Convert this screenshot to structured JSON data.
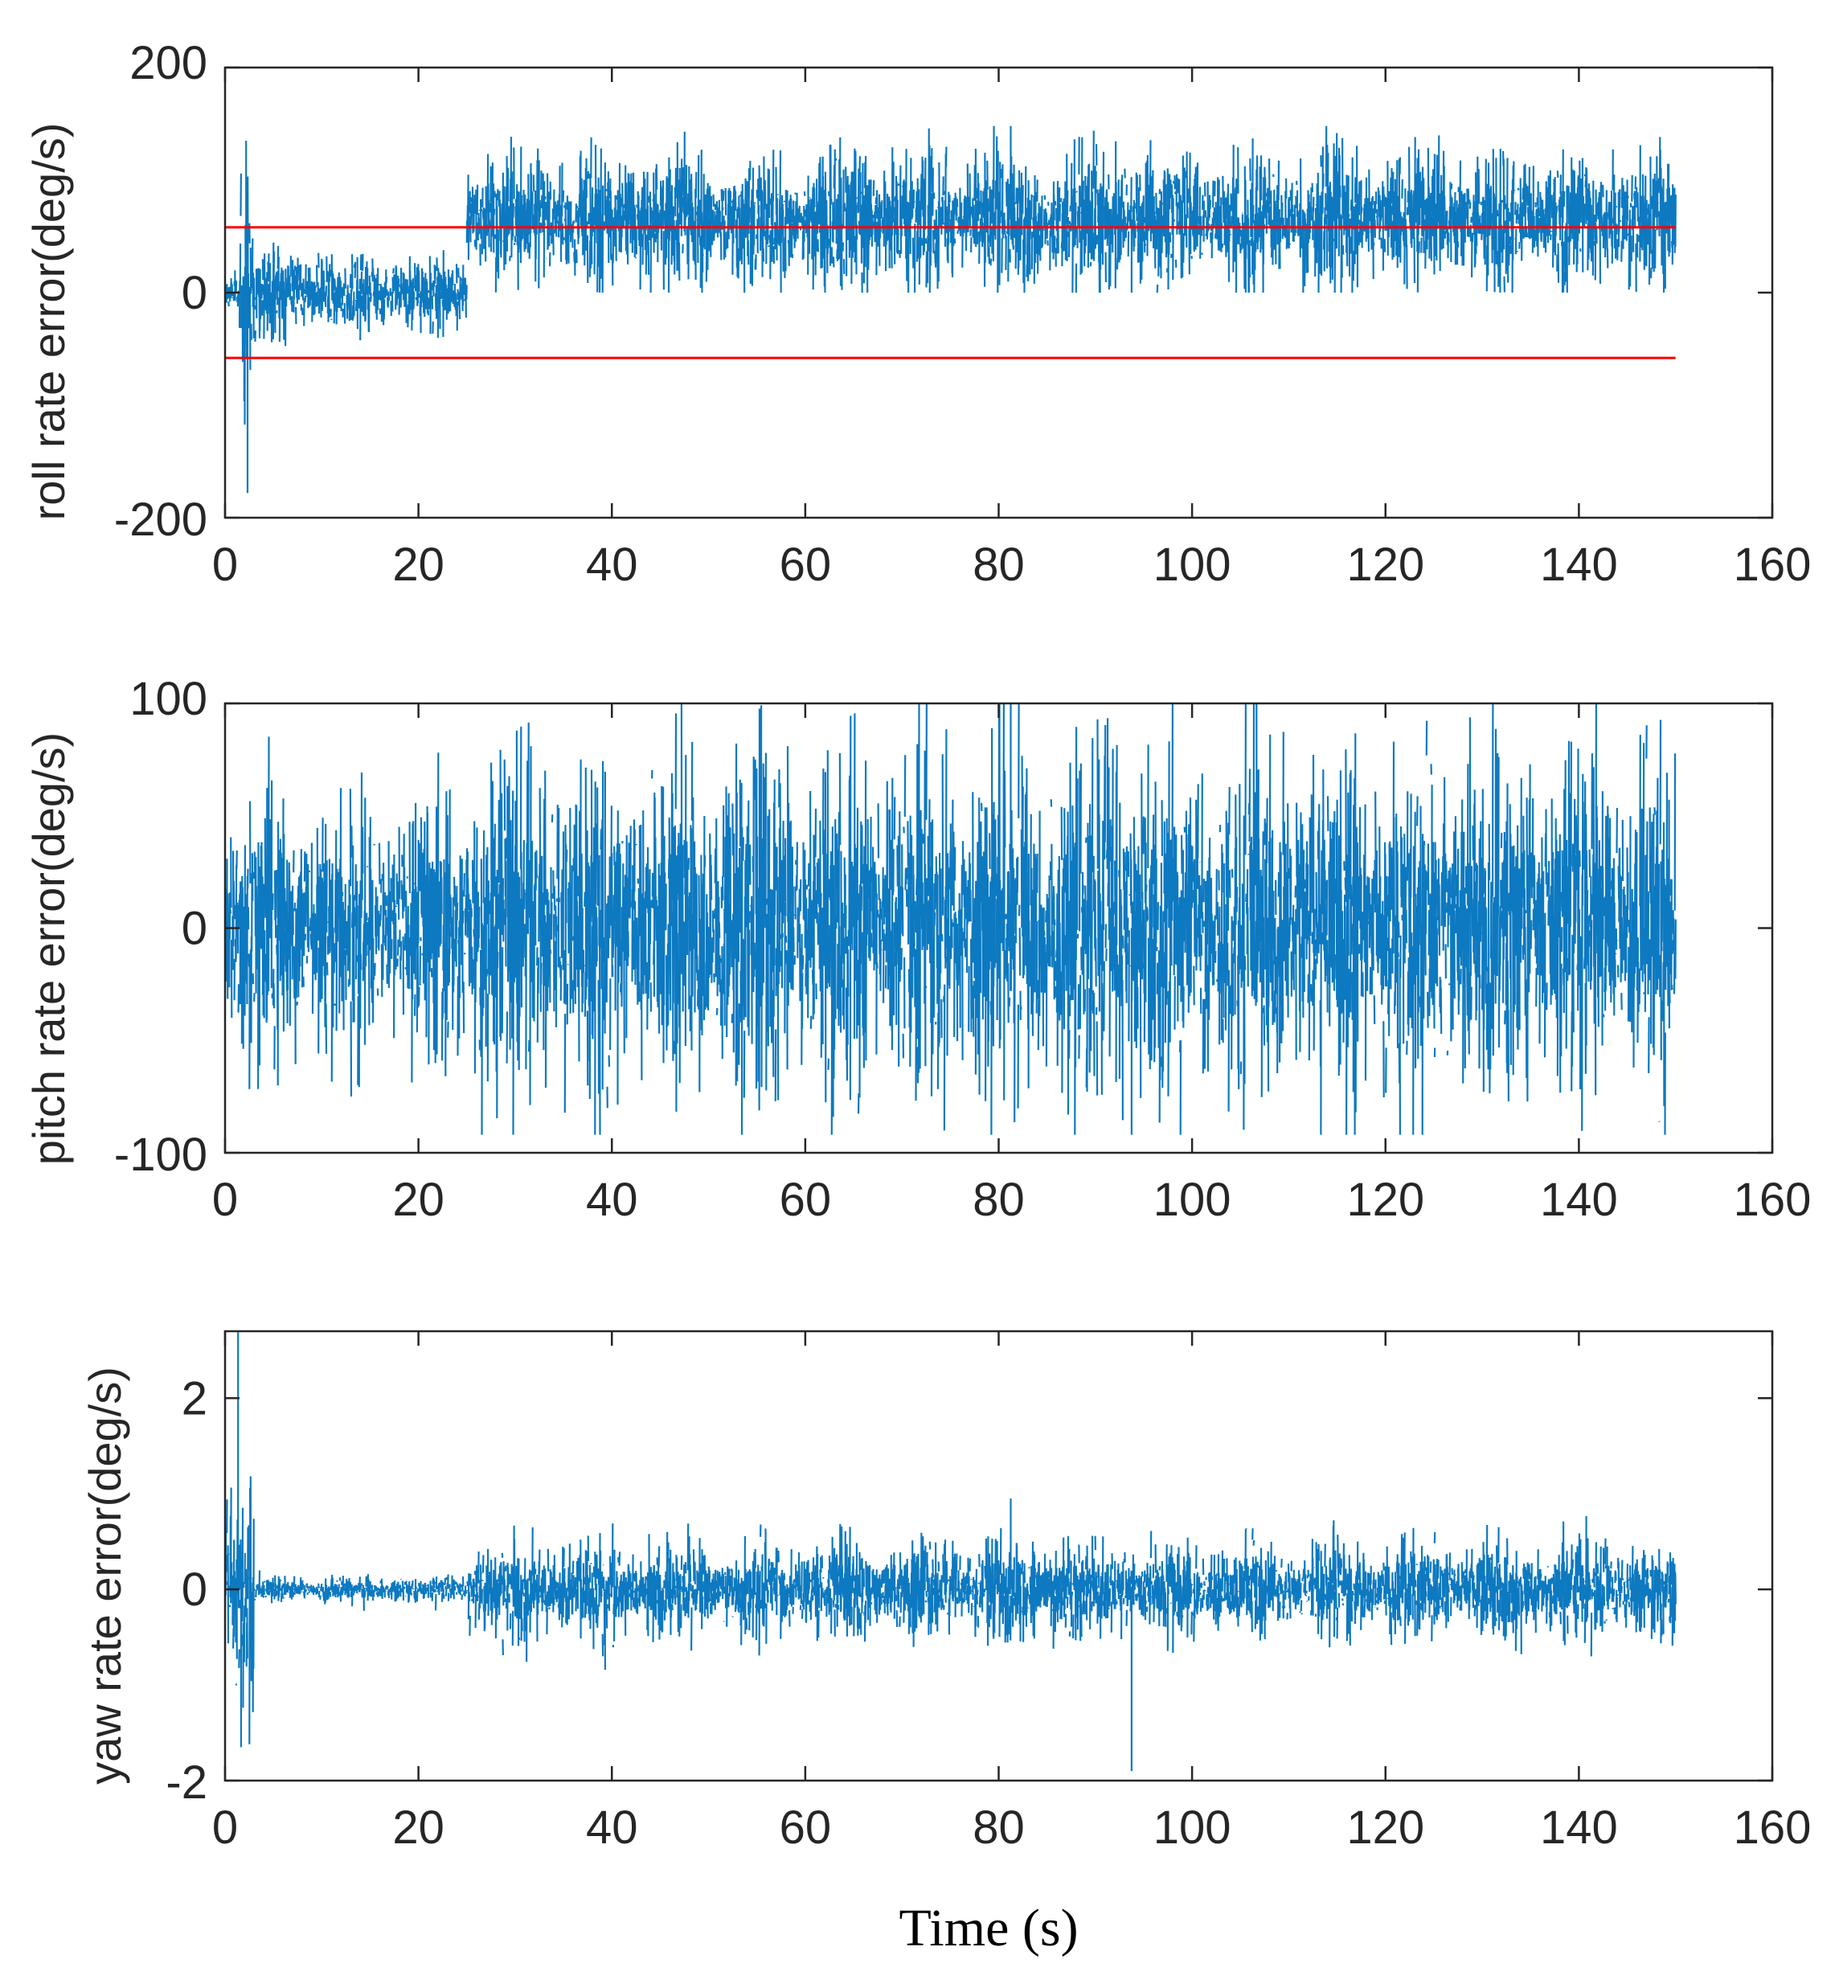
{
  "chart_data": [
    {
      "type": "line",
      "title": "",
      "xlabel": "",
      "ylabel": "roll rate error(deg/s)",
      "xlim": [
        0,
        160
      ],
      "ylim": [
        -200,
        200
      ],
      "xticks": [
        "0",
        "20",
        "40",
        "60",
        "80",
        "100",
        "120",
        "140",
        "160"
      ],
      "yticks": [
        "-200",
        "0",
        "200"
      ],
      "grid": false,
      "series": [
        {
          "name": "roll rate error",
          "color": "#0072BD",
          "description": "noisy signal",
          "segments": [
            {
              "x_start": 0,
              "x_end": 1.5,
              "mean": 0,
              "amplitude": 25
            },
            {
              "x_start": 1.5,
              "x_end": 3,
              "mean": 0,
              "amplitude": 110,
              "min": -178,
              "max": 135
            },
            {
              "x_start": 3,
              "x_end": 25,
              "mean": 0,
              "amplitude": 38
            },
            {
              "x_start": 25,
              "x_end": 150,
              "mean": 65,
              "amplitude": 65,
              "min": 0,
              "max": 148
            }
          ]
        },
        {
          "name": "upper threshold",
          "color": "#FF0000",
          "x": [
            0,
            150
          ],
          "y": [
            58,
            58
          ]
        },
        {
          "name": "lower threshold",
          "color": "#FF0000",
          "x": [
            0,
            150
          ],
          "y": [
            -58,
            -58
          ]
        }
      ]
    },
    {
      "type": "line",
      "title": "",
      "xlabel": "",
      "ylabel": "pitch rate error(deg/s)",
      "xlim": [
        0,
        160
      ],
      "ylim": [
        -100,
        100
      ],
      "xticks": [
        "0",
        "20",
        "40",
        "60",
        "80",
        "100",
        "120",
        "140",
        "160"
      ],
      "yticks": [
        "-100",
        "0",
        "100"
      ],
      "grid": false,
      "series": [
        {
          "name": "pitch rate error",
          "color": "#0072BD",
          "segments": [
            {
              "x_start": 0,
              "x_end": 25,
              "mean": 0,
              "amplitude": 60
            },
            {
              "x_start": 25,
              "x_end": 150,
              "mean": 0,
              "amplitude": 85,
              "min": -92,
              "max": 100
            }
          ]
        }
      ]
    },
    {
      "type": "line",
      "title": "",
      "xlabel": "Time (s)",
      "ylabel": "yaw rate error(deg/s)",
      "xlim": [
        0,
        160
      ],
      "ylim": [
        -2,
        2.7
      ],
      "xticks": [
        "0",
        "20",
        "40",
        "60",
        "80",
        "100",
        "120",
        "140",
        "160"
      ],
      "yticks": [
        "-2",
        "0",
        "2"
      ],
      "grid": false,
      "series": [
        {
          "name": "yaw rate error",
          "color": "#0072BD",
          "segments": [
            {
              "x_start": 0,
              "x_end": 3,
              "mean": 0,
              "amplitude": 1.5,
              "min": -1.65,
              "max": 2.7
            },
            {
              "x_start": 3,
              "x_end": 25,
              "mean": 0,
              "amplitude": 0.15
            },
            {
              "x_start": 25,
              "x_end": 150,
              "mean": 0,
              "amplitude": 0.55,
              "min": -1.9,
              "max": 0.95
            }
          ]
        }
      ]
    }
  ]
}
